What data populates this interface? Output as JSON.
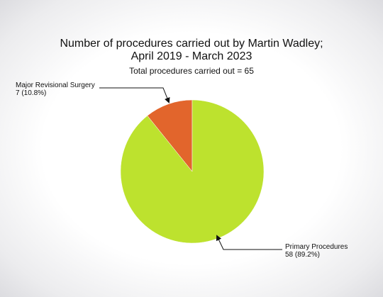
{
  "chart_data": {
    "type": "pie",
    "title_line1": "Number of procedures carried out by Martin Wadley;",
    "title_line2": "April 2019 - March 2023",
    "subtitle": "Total procedures carried out = 65",
    "slices": [
      {
        "name": "Major Revisional Surgery",
        "value": 7,
        "label_value": "7 (10.8%)",
        "color": "#e2652c"
      },
      {
        "name": "Primary Procedures",
        "value": 58,
        "label_value": "58 (89.2%)",
        "color": "#bde22e"
      }
    ]
  }
}
